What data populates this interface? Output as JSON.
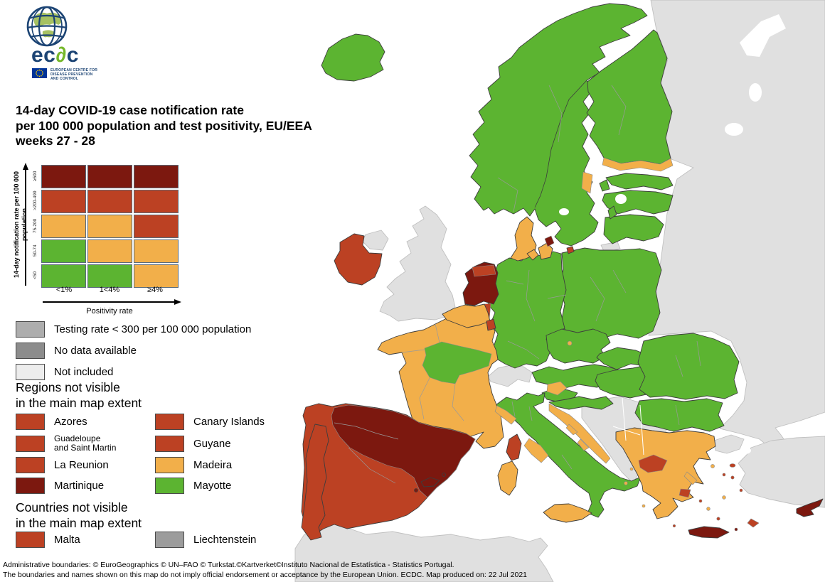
{
  "palette": {
    "green": "#5CB431",
    "orange": "#F2AF4A",
    "red": "#BC4123",
    "darkred": "#7C180F",
    "map_gray": "#E0E0E0",
    "legend_gray_testing": "#ADADAD",
    "legend_gray_nodata": "#8C8C8C",
    "legend_gray_notincluded": "#EDEDED",
    "liechtenstein_gray": "#9C9C9C",
    "sea": "#FFFFFF",
    "logo_navy": "#1C4474",
    "logo_green": "#76B82A",
    "eu_flag_blue": "#003399",
    "eu_flag_yellow": "#FFCC00"
  },
  "logo": {
    "acronym_pre": "ec",
    "acronym_delta": "∂",
    "acronym_post": "c",
    "org_line1": "EUROPEAN CENTRE FOR",
    "org_line2": "DISEASE PREVENTION",
    "org_line3": "AND CONTROL"
  },
  "title": {
    "line1": "14-day COVID-19 case notification rate",
    "line2": "per 100 000 population and test positivity, EU/EEA",
    "line3": "weeks 27 - 28"
  },
  "matrix": {
    "y_axis_label": "14-day notification rate per 100 000 population",
    "x_axis_label": "Positivity rate",
    "col_labels": [
      "<1%",
      "1<4%",
      "≥4%"
    ],
    "rows": [
      {
        "label": "≥500",
        "cells": [
          "darkred",
          "darkred",
          "darkred"
        ]
      },
      {
        "label": ">200-499",
        "cells": [
          "red",
          "red",
          "red"
        ]
      },
      {
        "label": "75-200",
        "cells": [
          "orange",
          "orange",
          "red"
        ]
      },
      {
        "label": "50-74",
        "cells": [
          "green",
          "orange",
          "orange"
        ]
      },
      {
        "label": "<50",
        "cells": [
          "green",
          "green",
          "orange"
        ]
      }
    ]
  },
  "status_legend": [
    {
      "color": "legend_gray_testing",
      "label": "Testing rate < 300 per 100 000 population"
    },
    {
      "color": "legend_gray_nodata",
      "label": "No data available"
    },
    {
      "color": "legend_gray_notincluded",
      "label": "Not included"
    }
  ],
  "regions_section": {
    "heading_line1": "Regions not visible",
    "heading_line2": "in the main map extent",
    "items": [
      {
        "color": "red",
        "label": "Azores"
      },
      {
        "color": "red",
        "label": "Canary Islands"
      },
      {
        "color": "red",
        "label": "Guadeloupe\nand Saint Martin"
      },
      {
        "color": "red",
        "label": "Guyane"
      },
      {
        "color": "red",
        "label": "La Reunion"
      },
      {
        "color": "orange",
        "label": "Madeira"
      },
      {
        "color": "darkred",
        "label": "Martinique"
      },
      {
        "color": "green",
        "label": "Mayotte"
      }
    ]
  },
  "countries_section": {
    "heading_line1": "Countries not visible",
    "heading_line2": "in the main map extent",
    "items": [
      {
        "color": "red",
        "label": "Malta"
      },
      {
        "color": "liechtenstein_gray",
        "label": "Liechtenstein"
      }
    ]
  },
  "footer": {
    "line1": "Administrative boundaries: © EuroGeographics © UN–FAO © Turkstat.©Kartverket©Instituto Nacional de Estatística - Statistics Portugal.",
    "line2": "The boundaries and names shown on this map do not imply official endorsement or acceptance by the European Union. ECDC. Map produced on: 22 Jul 2021"
  },
  "map_countries": {
    "green": [
      "Iceland",
      "Norway",
      "Sweden",
      "Finland",
      "Estonia",
      "Latvia",
      "Lithuania",
      "Poland",
      "Germany",
      "Czechia",
      "Austria",
      "Slovakia",
      "Hungary",
      "Slovenia",
      "Croatia inland",
      "Romania",
      "Bulgaria",
      "Italy most regions"
    ],
    "orange": [
      "Denmark",
      "Belgium",
      "France most regions",
      "Sweden Gävle coast",
      "Finland south coast",
      "Liguria",
      "Lazio",
      "Sardinia",
      "Sicily",
      "Croatia coast",
      "Greece most regions"
    ],
    "red": [
      "Ireland",
      "Portugal",
      "Spain west and south",
      "Luxembourg",
      "Corsica",
      "Epirus",
      "Attica",
      "Bornholm"
    ],
    "darkred": [
      "Netherlands",
      "Spain north and east",
      "Balearic Islands",
      "Crete",
      "Cyprus",
      "Copenhagen region"
    ],
    "gray_not_included": [
      "United Kingdom",
      "Switzerland",
      "Russia",
      "Belarus",
      "Ukraine",
      "Moldova",
      "Turkey",
      "Western Balkans",
      "North Africa"
    ]
  }
}
